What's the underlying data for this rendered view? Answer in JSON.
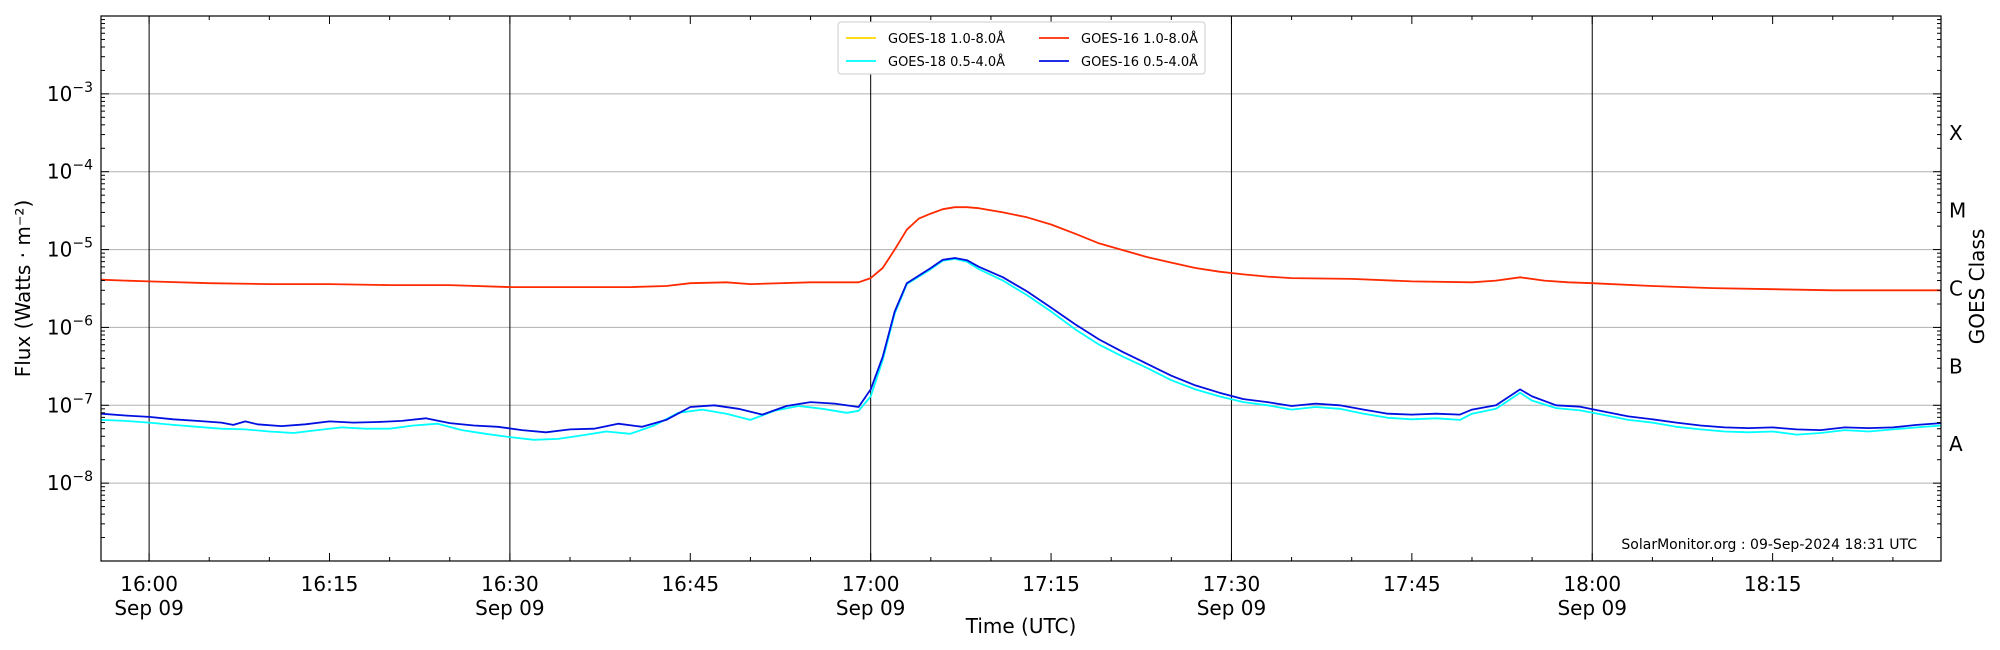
{
  "chart_data": {
    "type": "line",
    "xlabel": "Time (UTC)",
    "ylabel": "Flux (Watts · m⁻²)",
    "ylabel_right": "GOES Class",
    "credit": "SolarMonitor.org : 09-Sep-2024 18:31 UTC",
    "y_scale": "log",
    "ylim": [
      1e-09,
      0.01
    ],
    "xlim": [
      "2024-09-09 15:56",
      "2024-09-09 18:29"
    ],
    "grid": "horizontal at decades",
    "legend_position": "upper center",
    "x_ticks": [
      {
        "time": "16:00",
        "line1": "16:00",
        "line2": "Sep 09"
      },
      {
        "time": "16:15",
        "line1": "16:15",
        "line2": ""
      },
      {
        "time": "16:30",
        "line1": "16:30",
        "line2": "Sep 09"
      },
      {
        "time": "16:45",
        "line1": "16:45",
        "line2": ""
      },
      {
        "time": "17:00",
        "line1": "17:00",
        "line2": "Sep 09"
      },
      {
        "time": "17:15",
        "line1": "17:15",
        "line2": ""
      },
      {
        "time": "17:30",
        "line1": "17:30",
        "line2": "Sep 09"
      },
      {
        "time": "17:45",
        "line1": "17:45",
        "line2": ""
      },
      {
        "time": "18:00",
        "line1": "18:00",
        "line2": "Sep 09"
      },
      {
        "time": "18:15",
        "line1": "18:15",
        "line2": ""
      }
    ],
    "vertical_lines": [
      "16:00",
      "16:30",
      "17:00",
      "17:30",
      "18:00"
    ],
    "y_ticks": [
      {
        "value": 0.001,
        "base": "10",
        "exp": "−3"
      },
      {
        "value": 0.0001,
        "base": "10",
        "exp": "−4"
      },
      {
        "value": 1e-05,
        "base": "10",
        "exp": "−5"
      },
      {
        "value": 1e-06,
        "base": "10",
        "exp": "−6"
      },
      {
        "value": 1e-07,
        "base": "10",
        "exp": "−7"
      },
      {
        "value": 1e-08,
        "base": "10",
        "exp": "−8"
      }
    ],
    "goes_classes": [
      {
        "label": "X",
        "value": 0.0003162
      },
      {
        "label": "M",
        "value": 3.162e-05
      },
      {
        "label": "C",
        "value": 3.162e-06
      },
      {
        "label": "B",
        "value": 3.162e-07
      },
      {
        "label": "A",
        "value": 3.162e-08
      }
    ],
    "series": [
      {
        "name": "GOES-18 1.0-8.0Å",
        "color": "#ffd700",
        "plotted": false,
        "points": []
      },
      {
        "name": "GOES-18 0.5-4.0Å",
        "color": "#00ffff",
        "points": [
          [
            "15:56",
            6.5e-08
          ],
          [
            "15:58",
            6.3e-08
          ],
          [
            "16:00",
            6e-08
          ],
          [
            "16:02",
            5.6e-08
          ],
          [
            "16:04",
            5.3e-08
          ],
          [
            "16:06",
            5e-08
          ],
          [
            "16:08",
            4.9e-08
          ],
          [
            "16:10",
            4.6e-08
          ],
          [
            "16:12",
            4.4e-08
          ],
          [
            "16:14",
            4.8e-08
          ],
          [
            "16:16",
            5.2e-08
          ],
          [
            "16:18",
            5e-08
          ],
          [
            "16:20",
            5e-08
          ],
          [
            "16:22",
            5.5e-08
          ],
          [
            "16:24",
            5.8e-08
          ],
          [
            "16:26",
            4.8e-08
          ],
          [
            "16:28",
            4.3e-08
          ],
          [
            "16:30",
            3.9e-08
          ],
          [
            "16:32",
            3.6e-08
          ],
          [
            "16:34",
            3.7e-08
          ],
          [
            "16:36",
            4.1e-08
          ],
          [
            "16:38",
            4.6e-08
          ],
          [
            "16:40",
            4.3e-08
          ],
          [
            "16:42",
            5.5e-08
          ],
          [
            "16:44",
            8e-08
          ],
          [
            "16:46",
            8.8e-08
          ],
          [
            "16:48",
            7.8e-08
          ],
          [
            "16:50",
            6.5e-08
          ],
          [
            "16:52",
            8.5e-08
          ],
          [
            "16:54",
            9.8e-08
          ],
          [
            "16:56",
            9e-08
          ],
          [
            "16:58",
            8e-08
          ],
          [
            "16:59",
            8.5e-08
          ],
          [
            "17:00",
            1.3e-07
          ],
          [
            "17:01",
            3.8e-07
          ],
          [
            "17:02",
            1.5e-06
          ],
          [
            "17:03",
            3.6e-06
          ],
          [
            "17:05",
            5.6e-06
          ],
          [
            "17:06",
            7.2e-06
          ],
          [
            "17:07",
            7.6e-06
          ],
          [
            "17:08",
            7e-06
          ],
          [
            "17:09",
            5.6e-06
          ],
          [
            "17:11",
            4e-06
          ],
          [
            "17:13",
            2.6e-06
          ],
          [
            "17:15",
            1.6e-06
          ],
          [
            "17:17",
            9.5e-07
          ],
          [
            "17:19",
            6e-07
          ],
          [
            "17:21",
            4.2e-07
          ],
          [
            "17:23",
            3e-07
          ],
          [
            "17:25",
            2.1e-07
          ],
          [
            "17:27",
            1.6e-07
          ],
          [
            "17:29",
            1.3e-07
          ],
          [
            "17:31",
            1.1e-07
          ],
          [
            "17:33",
            1e-07
          ],
          [
            "17:35",
            8.8e-08
          ],
          [
            "17:37",
            9.5e-08
          ],
          [
            "17:39",
            9e-08
          ],
          [
            "17:41",
            7.8e-08
          ],
          [
            "17:43",
            6.9e-08
          ],
          [
            "17:45",
            6.6e-08
          ],
          [
            "17:47",
            6.8e-08
          ],
          [
            "17:49",
            6.5e-08
          ],
          [
            "17:50",
            7.8e-08
          ],
          [
            "17:52",
            9e-08
          ],
          [
            "17:54",
            1.45e-07
          ],
          [
            "17:55",
            1.15e-07
          ],
          [
            "17:57",
            9.2e-08
          ],
          [
            "17:59",
            8.6e-08
          ],
          [
            "18:01",
            7.5e-08
          ],
          [
            "18:03",
            6.5e-08
          ],
          [
            "18:05",
            6e-08
          ],
          [
            "18:07",
            5.3e-08
          ],
          [
            "18:09",
            4.9e-08
          ],
          [
            "18:11",
            4.6e-08
          ],
          [
            "18:13",
            4.5e-08
          ],
          [
            "18:15",
            4.6e-08
          ],
          [
            "18:17",
            4.2e-08
          ],
          [
            "18:19",
            4.4e-08
          ],
          [
            "18:21",
            4.8e-08
          ],
          [
            "18:23",
            4.6e-08
          ],
          [
            "18:25",
            4.9e-08
          ],
          [
            "18:27",
            5.2e-08
          ],
          [
            "18:29",
            5.5e-08
          ]
        ]
      },
      {
        "name": "GOES-16 1.0-8.0Å",
        "color": "#ff2a00",
        "points": [
          [
            "15:56",
            4.1e-06
          ],
          [
            "15:58",
            4e-06
          ],
          [
            "16:00",
            3.9e-06
          ],
          [
            "16:05",
            3.7e-06
          ],
          [
            "16:10",
            3.6e-06
          ],
          [
            "16:15",
            3.6e-06
          ],
          [
            "16:20",
            3.5e-06
          ],
          [
            "16:25",
            3.5e-06
          ],
          [
            "16:30",
            3.3e-06
          ],
          [
            "16:35",
            3.3e-06
          ],
          [
            "16:40",
            3.3e-06
          ],
          [
            "16:43",
            3.4e-06
          ],
          [
            "16:45",
            3.7e-06
          ],
          [
            "16:48",
            3.8e-06
          ],
          [
            "16:50",
            3.6e-06
          ],
          [
            "16:55",
            3.8e-06
          ],
          [
            "16:59",
            3.8e-06
          ],
          [
            "17:00",
            4.3e-06
          ],
          [
            "17:01",
            5.8e-06
          ],
          [
            "17:02",
            1e-05
          ],
          [
            "17:03",
            1.8e-05
          ],
          [
            "17:04",
            2.5e-05
          ],
          [
            "17:05",
            2.9e-05
          ],
          [
            "17:06",
            3.3e-05
          ],
          [
            "17:07",
            3.5e-05
          ],
          [
            "17:08",
            3.5e-05
          ],
          [
            "17:09",
            3.4e-05
          ],
          [
            "17:11",
            3e-05
          ],
          [
            "17:13",
            2.6e-05
          ],
          [
            "17:15",
            2.1e-05
          ],
          [
            "17:17",
            1.6e-05
          ],
          [
            "17:19",
            1.2e-05
          ],
          [
            "17:21",
            9.8e-06
          ],
          [
            "17:23",
            8e-06
          ],
          [
            "17:25",
            6.8e-06
          ],
          [
            "17:27",
            5.8e-06
          ],
          [
            "17:29",
            5.2e-06
          ],
          [
            "17:31",
            4.8e-06
          ],
          [
            "17:33",
            4.5e-06
          ],
          [
            "17:35",
            4.3e-06
          ],
          [
            "17:40",
            4.2e-06
          ],
          [
            "17:45",
            3.9e-06
          ],
          [
            "17:50",
            3.8e-06
          ],
          [
            "17:52",
            4e-06
          ],
          [
            "17:54",
            4.4e-06
          ],
          [
            "17:56",
            4e-06
          ],
          [
            "17:58",
            3.8e-06
          ],
          [
            "18:00",
            3.7e-06
          ],
          [
            "18:05",
            3.4e-06
          ],
          [
            "18:10",
            3.2e-06
          ],
          [
            "18:15",
            3.1e-06
          ],
          [
            "18:20",
            3e-06
          ],
          [
            "18:25",
            3e-06
          ],
          [
            "18:29",
            3e-06
          ]
        ]
      },
      {
        "name": "GOES-16 0.5-4.0Å",
        "color": "#0010e0",
        "points": [
          [
            "15:56",
            7.8e-08
          ],
          [
            "15:58",
            7.4e-08
          ],
          [
            "16:00",
            7.1e-08
          ],
          [
            "16:02",
            6.6e-08
          ],
          [
            "16:04",
            6.3e-08
          ],
          [
            "16:06",
            6e-08
          ],
          [
            "16:07",
            5.6e-08
          ],
          [
            "16:08",
            6.2e-08
          ],
          [
            "16:09",
            5.7e-08
          ],
          [
            "16:11",
            5.4e-08
          ],
          [
            "16:13",
            5.7e-08
          ],
          [
            "16:15",
            6.2e-08
          ],
          [
            "16:17",
            6e-08
          ],
          [
            "16:19",
            6.1e-08
          ],
          [
            "16:21",
            6.3e-08
          ],
          [
            "16:23",
            6.8e-08
          ],
          [
            "16:25",
            5.9e-08
          ],
          [
            "16:27",
            5.5e-08
          ],
          [
            "16:29",
            5.3e-08
          ],
          [
            "16:31",
            4.8e-08
          ],
          [
            "16:33",
            4.5e-08
          ],
          [
            "16:35",
            4.9e-08
          ],
          [
            "16:37",
            5e-08
          ],
          [
            "16:39",
            5.8e-08
          ],
          [
            "16:41",
            5.3e-08
          ],
          [
            "16:43",
            6.5e-08
          ],
          [
            "16:45",
            9.5e-08
          ],
          [
            "16:47",
            1e-07
          ],
          [
            "16:49",
            9e-08
          ],
          [
            "16:51",
            7.6e-08
          ],
          [
            "16:53",
            9.8e-08
          ],
          [
            "16:55",
            1.1e-07
          ],
          [
            "16:57",
            1.05e-07
          ],
          [
            "16:59",
            9.5e-08
          ],
          [
            "17:00",
            1.6e-07
          ],
          [
            "17:01",
            4.2e-07
          ],
          [
            "17:02",
            1.6e-06
          ],
          [
            "17:03",
            3.7e-06
          ],
          [
            "17:05",
            5.8e-06
          ],
          [
            "17:06",
            7.4e-06
          ],
          [
            "17:07",
            7.8e-06
          ],
          [
            "17:08",
            7.3e-06
          ],
          [
            "17:09",
            6e-06
          ],
          [
            "17:11",
            4.4e-06
          ],
          [
            "17:13",
            2.9e-06
          ],
          [
            "17:15",
            1.8e-06
          ],
          [
            "17:17",
            1.1e-06
          ],
          [
            "17:19",
            7e-07
          ],
          [
            "17:21",
            4.8e-07
          ],
          [
            "17:23",
            3.4e-07
          ],
          [
            "17:25",
            2.4e-07
          ],
          [
            "17:27",
            1.8e-07
          ],
          [
            "17:29",
            1.45e-07
          ],
          [
            "17:31",
            1.2e-07
          ],
          [
            "17:33",
            1.1e-07
          ],
          [
            "17:35",
            9.8e-08
          ],
          [
            "17:37",
            1.05e-07
          ],
          [
            "17:39",
            1e-07
          ],
          [
            "17:41",
            8.8e-08
          ],
          [
            "17:43",
            7.8e-08
          ],
          [
            "17:45",
            7.6e-08
          ],
          [
            "17:47",
            7.8e-08
          ],
          [
            "17:49",
            7.6e-08
          ],
          [
            "17:50",
            8.8e-08
          ],
          [
            "17:52",
            1e-07
          ],
          [
            "17:54",
            1.6e-07
          ],
          [
            "17:55",
            1.3e-07
          ],
          [
            "17:57",
            1e-07
          ],
          [
            "17:59",
            9.6e-08
          ],
          [
            "18:01",
            8.3e-08
          ],
          [
            "18:03",
            7.2e-08
          ],
          [
            "18:05",
            6.6e-08
          ],
          [
            "18:07",
            6e-08
          ],
          [
            "18:09",
            5.5e-08
          ],
          [
            "18:11",
            5.2e-08
          ],
          [
            "18:13",
            5.1e-08
          ],
          [
            "18:15",
            5.2e-08
          ],
          [
            "18:17",
            4.9e-08
          ],
          [
            "18:19",
            4.8e-08
          ],
          [
            "18:21",
            5.2e-08
          ],
          [
            "18:23",
            5.1e-08
          ],
          [
            "18:25",
            5.2e-08
          ],
          [
            "18:27",
            5.6e-08
          ],
          [
            "18:29",
            5.9e-08
          ]
        ]
      }
    ],
    "legend_entries": [
      {
        "name": "GOES-18 1.0-8.0Å",
        "color": "#ffd700"
      },
      {
        "name": "GOES-18 0.5-4.0Å",
        "color": "#00ffff"
      },
      {
        "name": "GOES-16 1.0-8.0Å",
        "color": "#ff2a00"
      },
      {
        "name": "GOES-16 0.5-4.0Å",
        "color": "#0010e0"
      }
    ]
  }
}
